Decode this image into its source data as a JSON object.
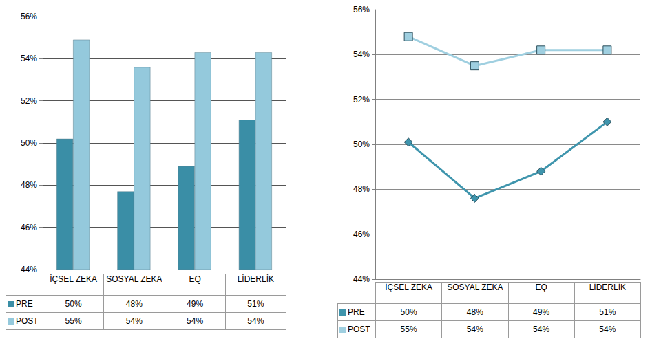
{
  "chart_data": [
    {
      "type": "bar",
      "categories": [
        "İÇSEL ZEKA",
        "SOSYAL ZEKA",
        "EQ",
        "LİDERLİK"
      ],
      "series": [
        {
          "name": "PRE",
          "color": "#3a8ea6",
          "values": [
            50.2,
            47.7,
            48.9,
            51.1
          ],
          "value_labels": [
            "50%",
            "48%",
            "49%",
            "51%"
          ]
        },
        {
          "name": "POST",
          "color": "#94c9dc",
          "values": [
            54.9,
            53.6,
            54.3,
            54.3
          ],
          "value_labels": [
            "55%",
            "54%",
            "54%",
            "54%"
          ]
        }
      ],
      "ylim": [
        44,
        56
      ],
      "yticks": [
        {
          "value": 44,
          "label": "44%"
        },
        {
          "value": 46,
          "label": "46%"
        },
        {
          "value": 48,
          "label": "48%"
        },
        {
          "value": 50,
          "label": "50%"
        },
        {
          "value": 52,
          "label": "52%"
        },
        {
          "value": 54,
          "label": "54%"
        },
        {
          "value": 56,
          "label": "56%"
        }
      ],
      "grid": true
    },
    {
      "type": "line",
      "categories": [
        "İÇSEL ZEKA",
        "SOSYAL ZEKA",
        "EQ",
        "LİDERLİK"
      ],
      "series": [
        {
          "name": "PRE",
          "color": "#3f95ad",
          "marker": "diamond",
          "values": [
            50.1,
            47.6,
            48.8,
            51.0
          ],
          "value_labels": [
            "50%",
            "48%",
            "49%",
            "51%"
          ]
        },
        {
          "name": "POST",
          "color": "#9fcfe0",
          "marker": "square",
          "values": [
            54.8,
            53.5,
            54.2,
            54.2
          ],
          "value_labels": [
            "55%",
            "54%",
            "54%",
            "54%"
          ]
        }
      ],
      "ylim": [
        44,
        56
      ],
      "yticks": [
        {
          "value": 44,
          "label": "44%"
        },
        {
          "value": 46,
          "label": "46%"
        },
        {
          "value": 48,
          "label": "48%"
        },
        {
          "value": 50,
          "label": "50%"
        },
        {
          "value": 52,
          "label": "52%"
        },
        {
          "value": 54,
          "label": "54%"
        },
        {
          "value": 56,
          "label": "56%"
        }
      ],
      "grid": true
    }
  ]
}
